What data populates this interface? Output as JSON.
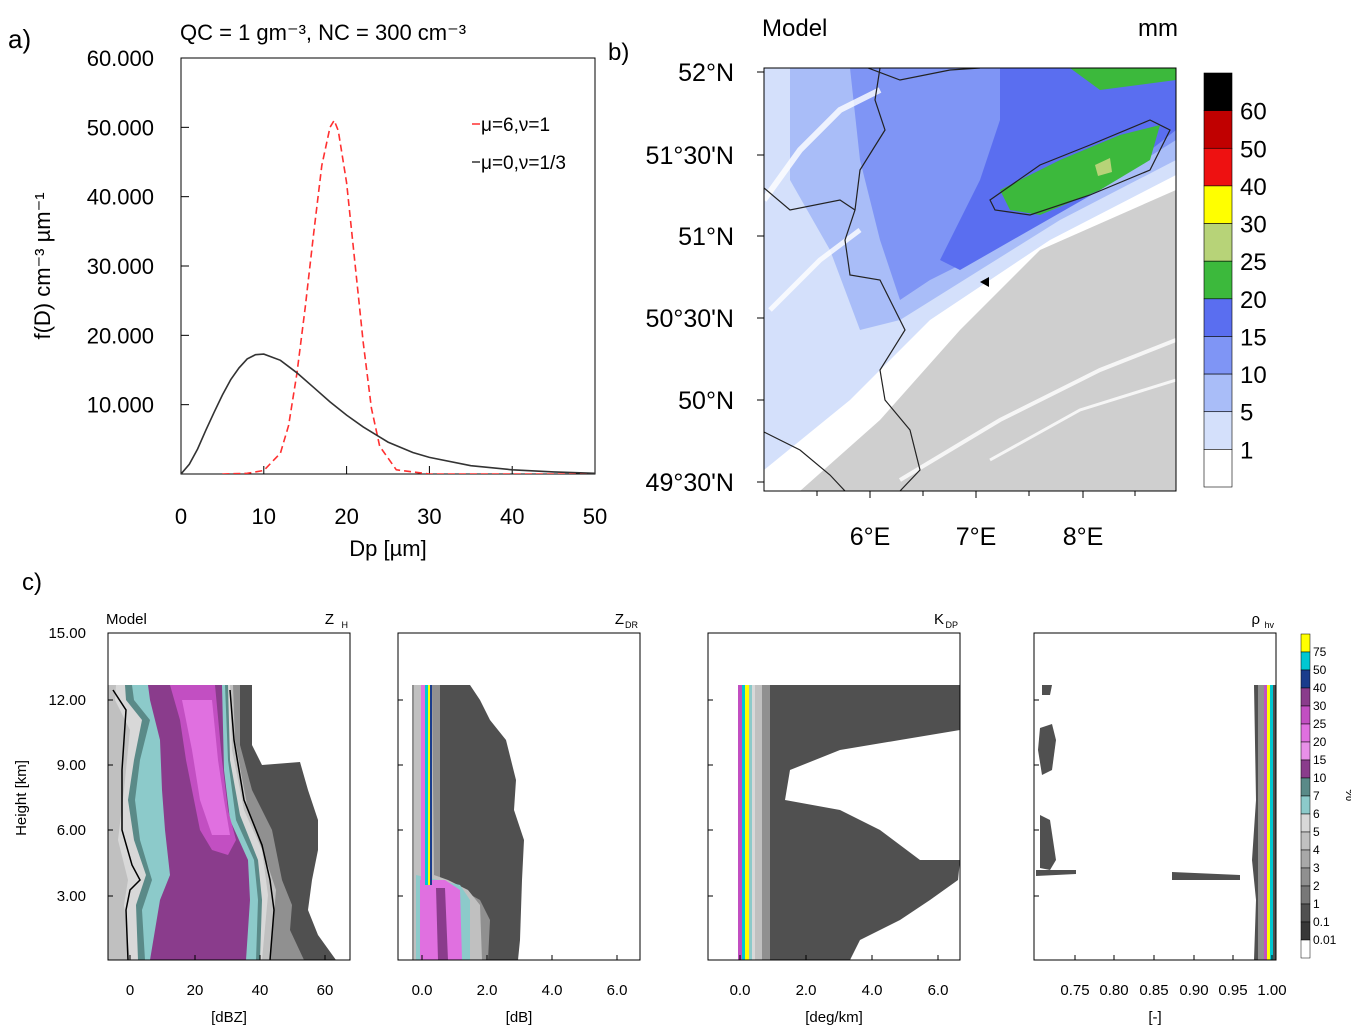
{
  "panel_a": {
    "label": "a)",
    "title": "QC = 1 gm⁻³,  NC = 300 cm⁻³",
    "chart_data": {
      "type": "line",
      "xlabel": "Dp [µm]",
      "ylabel": "f(D) cm⁻³ µm⁻¹",
      "xlim": [
        0,
        50
      ],
      "ylim": [
        0,
        60
      ],
      "x_ticks": [
        "0",
        "10",
        "20",
        "30",
        "40",
        "50"
      ],
      "y_ticks": [
        "10.000",
        "20.000",
        "30.000",
        "40.000",
        "50.000",
        "60.000"
      ],
      "series": [
        {
          "name": "μ=6,ν=1",
          "color": "#ff3030",
          "dash": true,
          "x": [
            5,
            8,
            10,
            12,
            13,
            14,
            15,
            16,
            17,
            18,
            18.5,
            19,
            20,
            21,
            22,
            23,
            24,
            26,
            30,
            50
          ],
          "y": [
            0.0,
            0.1,
            0.5,
            3.0,
            7.0,
            14.5,
            24.0,
            34.5,
            44.5,
            50.0,
            51.0,
            49.5,
            42.0,
            30.5,
            19.0,
            9.5,
            4.0,
            0.6,
            0.0,
            0.0
          ]
        },
        {
          "name": "μ=0,ν=1/3",
          "color": "#333333",
          "dash": false,
          "x": [
            0,
            1,
            2,
            3,
            4,
            5,
            6,
            7,
            8,
            9,
            10,
            12,
            14,
            16,
            18,
            20,
            22,
            25,
            28,
            30,
            35,
            40,
            45,
            50
          ],
          "y": [
            0.0,
            1.4,
            3.6,
            6.3,
            8.9,
            11.4,
            13.6,
            15.3,
            16.6,
            17.2,
            17.3,
            16.4,
            14.6,
            12.5,
            10.4,
            8.5,
            6.8,
            4.6,
            3.1,
            2.4,
            1.2,
            0.6,
            0.3,
            0.1
          ]
        }
      ]
    }
  },
  "panel_b": {
    "label": "b)",
    "title": "Model",
    "units": "mm",
    "lat_labels": [
      "52°N",
      "51°30'N",
      "51°N",
      "50°30'N",
      "50°N",
      "49°30'N"
    ],
    "lon_labels": [
      "6°E",
      "7°E",
      "8°E"
    ],
    "colorbar": {
      "labels": [
        "60",
        "50",
        "40",
        "30",
        "25",
        "20",
        "15",
        "10",
        "5",
        "1"
      ],
      "colors": [
        "#000000",
        "#c00000",
        "#ee1111",
        "#ffff00",
        "#b7d378",
        "#3cb93c",
        "#5a6ef0",
        "#7f95f5",
        "#a9bdf8",
        "#d4e0fb",
        "#ffffff"
      ]
    }
  },
  "panel_c": {
    "label": "c)",
    "ylabel": "Height [km]",
    "y_ticks": [
      "15.00",
      "12.00",
      "9.00",
      "6.00",
      "3.00"
    ],
    "model_label": "Model",
    "subplots": [
      {
        "title": "Z",
        "title_sub": "H",
        "xlabel": "[dBZ]",
        "x_ticks": [
          "0",
          "20",
          "40",
          "60"
        ]
      },
      {
        "title": "Z",
        "title_sub": "DR",
        "xlabel": "[dB]",
        "x_ticks": [
          "0.0",
          "2.0",
          "4.0",
          "6.0"
        ]
      },
      {
        "title": "K",
        "title_sub": "DP",
        "xlabel": "[deg/km]",
        "x_ticks": [
          "0.0",
          "2.0",
          "4.0",
          "6.0"
        ]
      },
      {
        "title": "ρ",
        "title_sub": "hv",
        "xlabel": "[-]",
        "x_ticks": [
          "0.75",
          "0.80",
          "0.85",
          "0.90",
          "0.95",
          "1.00"
        ]
      }
    ],
    "colorbar": {
      "unit": "%",
      "labels": [
        "75",
        "50",
        "40",
        "30",
        "25",
        "20",
        "15",
        "10",
        "7",
        "6",
        "5",
        "4",
        "3",
        "2",
        "1",
        "0.1",
        "0.01"
      ],
      "colors": [
        "#ffff00",
        "#00c8d2",
        "#1a3c8c",
        "#8a3c8c",
        "#c24fc2",
        "#e070e0",
        "#e890e8",
        "#8a3c8c",
        "#5a8a88",
        "#8ccaca",
        "#d8d8d8",
        "#c0c0c0",
        "#a8a8a8",
        "#909090",
        "#787878",
        "#505050",
        "#383838"
      ]
    }
  }
}
